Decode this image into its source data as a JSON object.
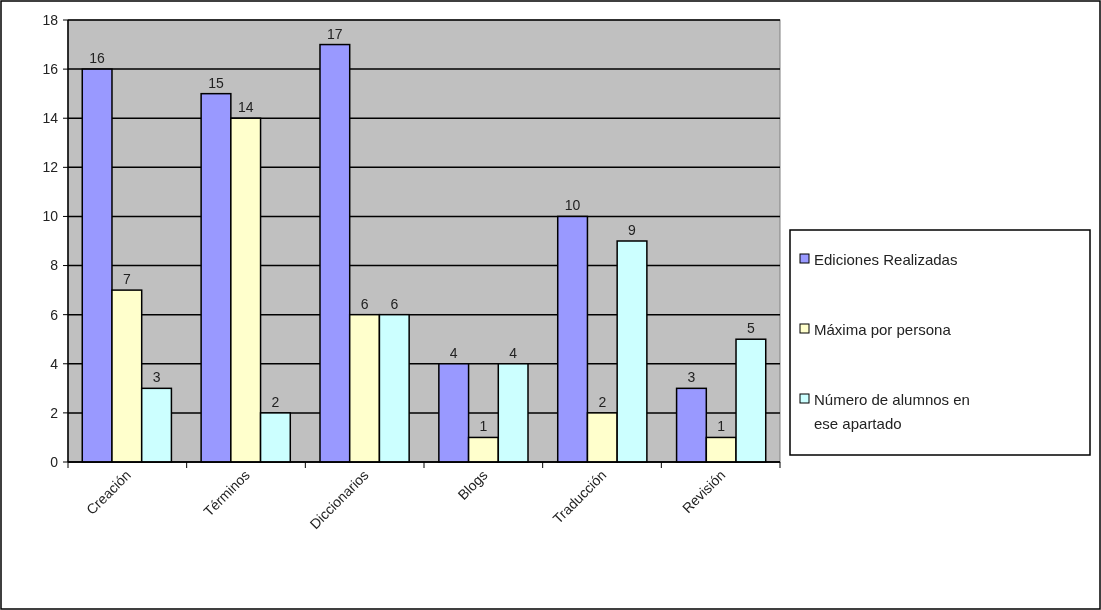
{
  "chart_data": {
    "type": "bar",
    "categories": [
      "Creación",
      "Términos",
      "Diccionarios",
      "Blogs",
      "Traducción",
      "Revisión"
    ],
    "series": [
      {
        "name": "Ediciones Realizadas",
        "color": "#9999ff",
        "values": [
          16,
          15,
          17,
          4,
          10,
          3
        ]
      },
      {
        "name": "Máxima por persona",
        "color": "#ffffcc",
        "values": [
          7,
          14,
          6,
          1,
          2,
          1
        ]
      },
      {
        "name": "Número de alumnos en ese apartado",
        "color": "#ccffff",
        "values": [
          3,
          2,
          6,
          4,
          9,
          5
        ]
      }
    ],
    "ylim": [
      0,
      18
    ],
    "yticks": [
      0,
      2,
      4,
      6,
      8,
      10,
      12,
      14,
      16,
      18
    ],
    "grid": "y",
    "legend": "right",
    "data_labels": true
  }
}
